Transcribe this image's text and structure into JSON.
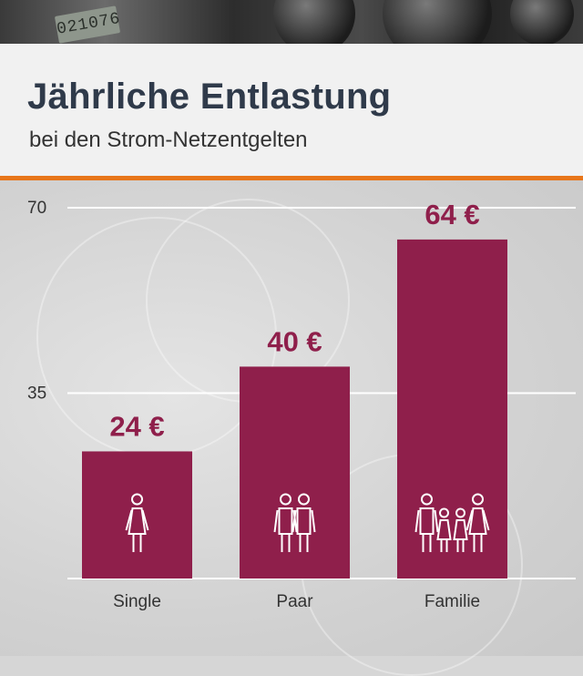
{
  "photo": {
    "meter_reading": "021076"
  },
  "chart_data": {
    "type": "bar",
    "title": "Jährliche Entlastung",
    "subtitle": "bei den Strom-Netzentgelten",
    "categories": [
      "Single",
      "Paar",
      "Familie"
    ],
    "values": [
      24,
      40,
      64
    ],
    "value_labels": [
      "24 €",
      "40 €",
      "64 €"
    ],
    "y_ticks": [
      35,
      70
    ],
    "ylim": [
      0,
      70
    ],
    "grid": true,
    "bar_icons": [
      "single-person-icon",
      "couple-icon",
      "family-icon"
    ],
    "colors": {
      "bar": "#8f1f4b",
      "value_label": "#8f1f4b",
      "accent": "#e8761a",
      "title": "#2f3a4a"
    }
  }
}
